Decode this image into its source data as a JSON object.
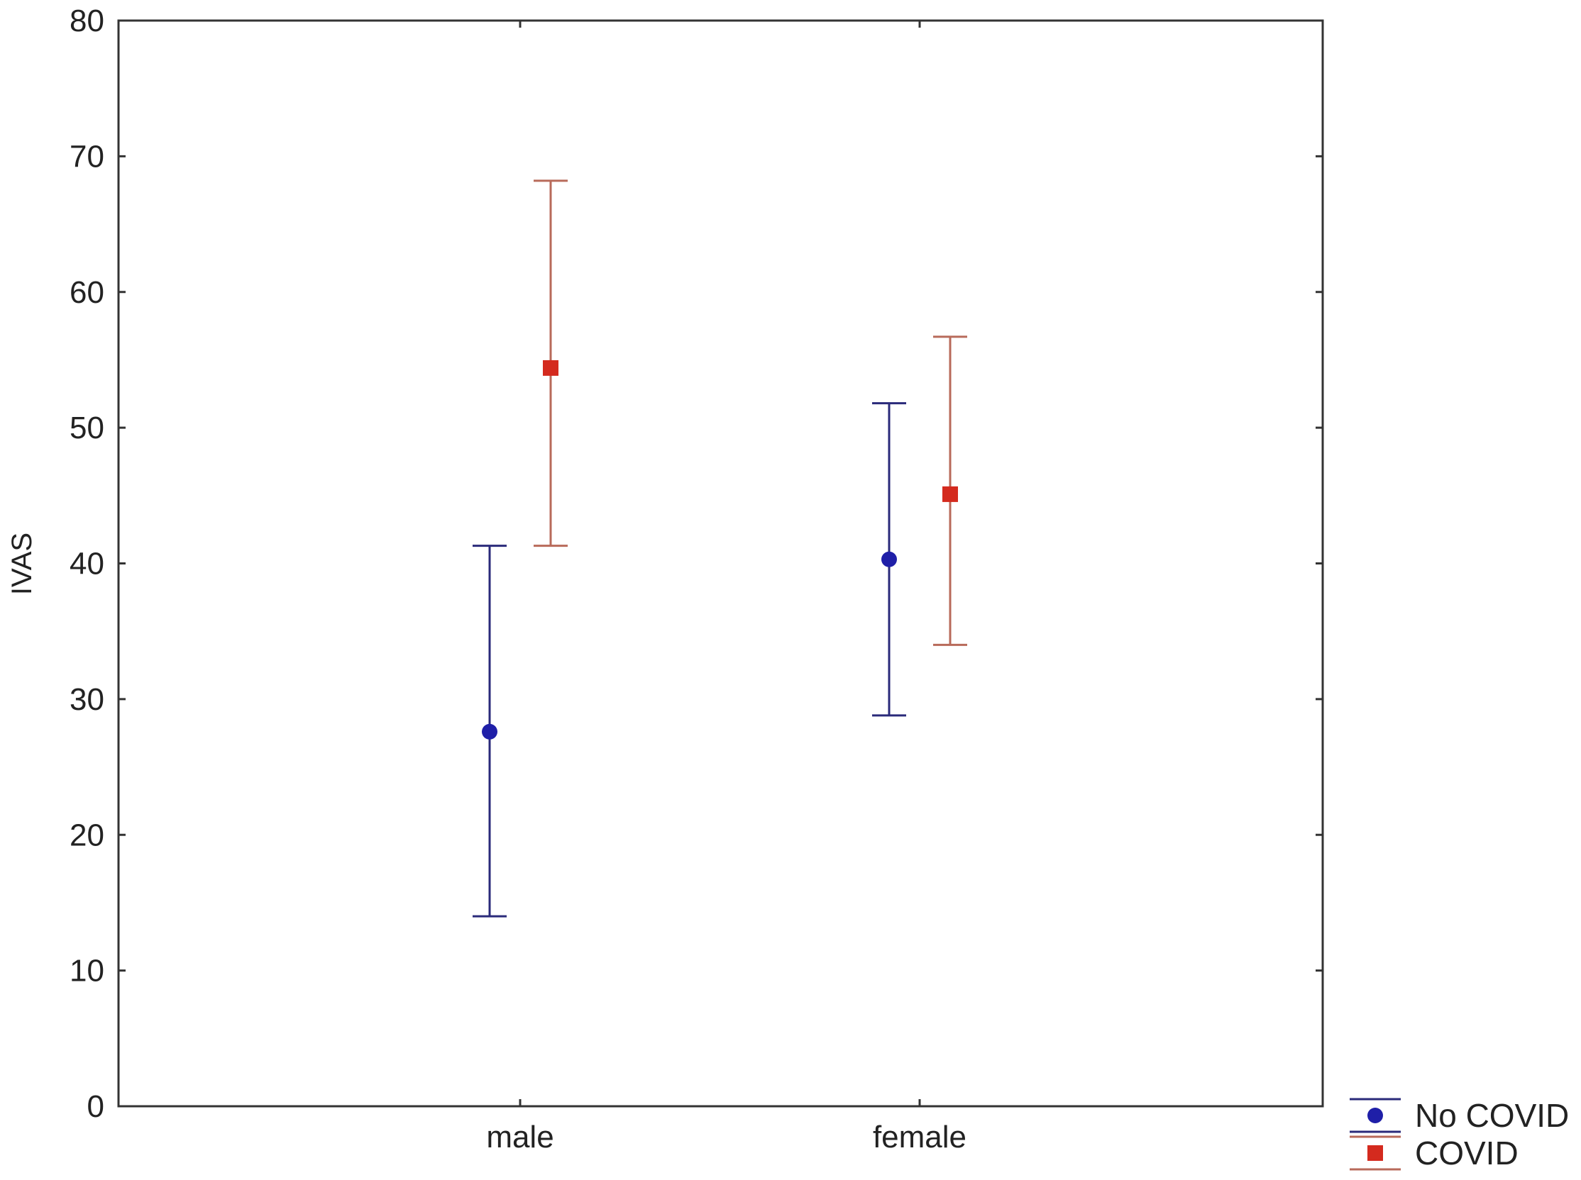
{
  "chart_data": {
    "type": "scatter",
    "title": "",
    "xlabel": "",
    "ylabel": "IVAS",
    "categories": [
      "male",
      "female"
    ],
    "ylim": [
      0,
      80
    ],
    "yticks": [
      0,
      10,
      20,
      30,
      40,
      50,
      60,
      70,
      80
    ],
    "grid": false,
    "legend_position": "bottom-right",
    "series": [
      {
        "name": "No COVID",
        "marker": "circle",
        "color": "#1f1fa8",
        "error_bar_color": "#2a2a7a",
        "values": [
          27.6,
          40.3
        ],
        "lower": [
          14.0,
          28.8
        ],
        "upper": [
          41.3,
          51.8
        ]
      },
      {
        "name": "COVID",
        "marker": "square",
        "color": "#d42a1e",
        "error_bar_color": "#b86a5a",
        "values": [
          54.4,
          45.1
        ],
        "lower": [
          41.3,
          34.0
        ],
        "upper": [
          68.2,
          56.7
        ]
      }
    ]
  }
}
